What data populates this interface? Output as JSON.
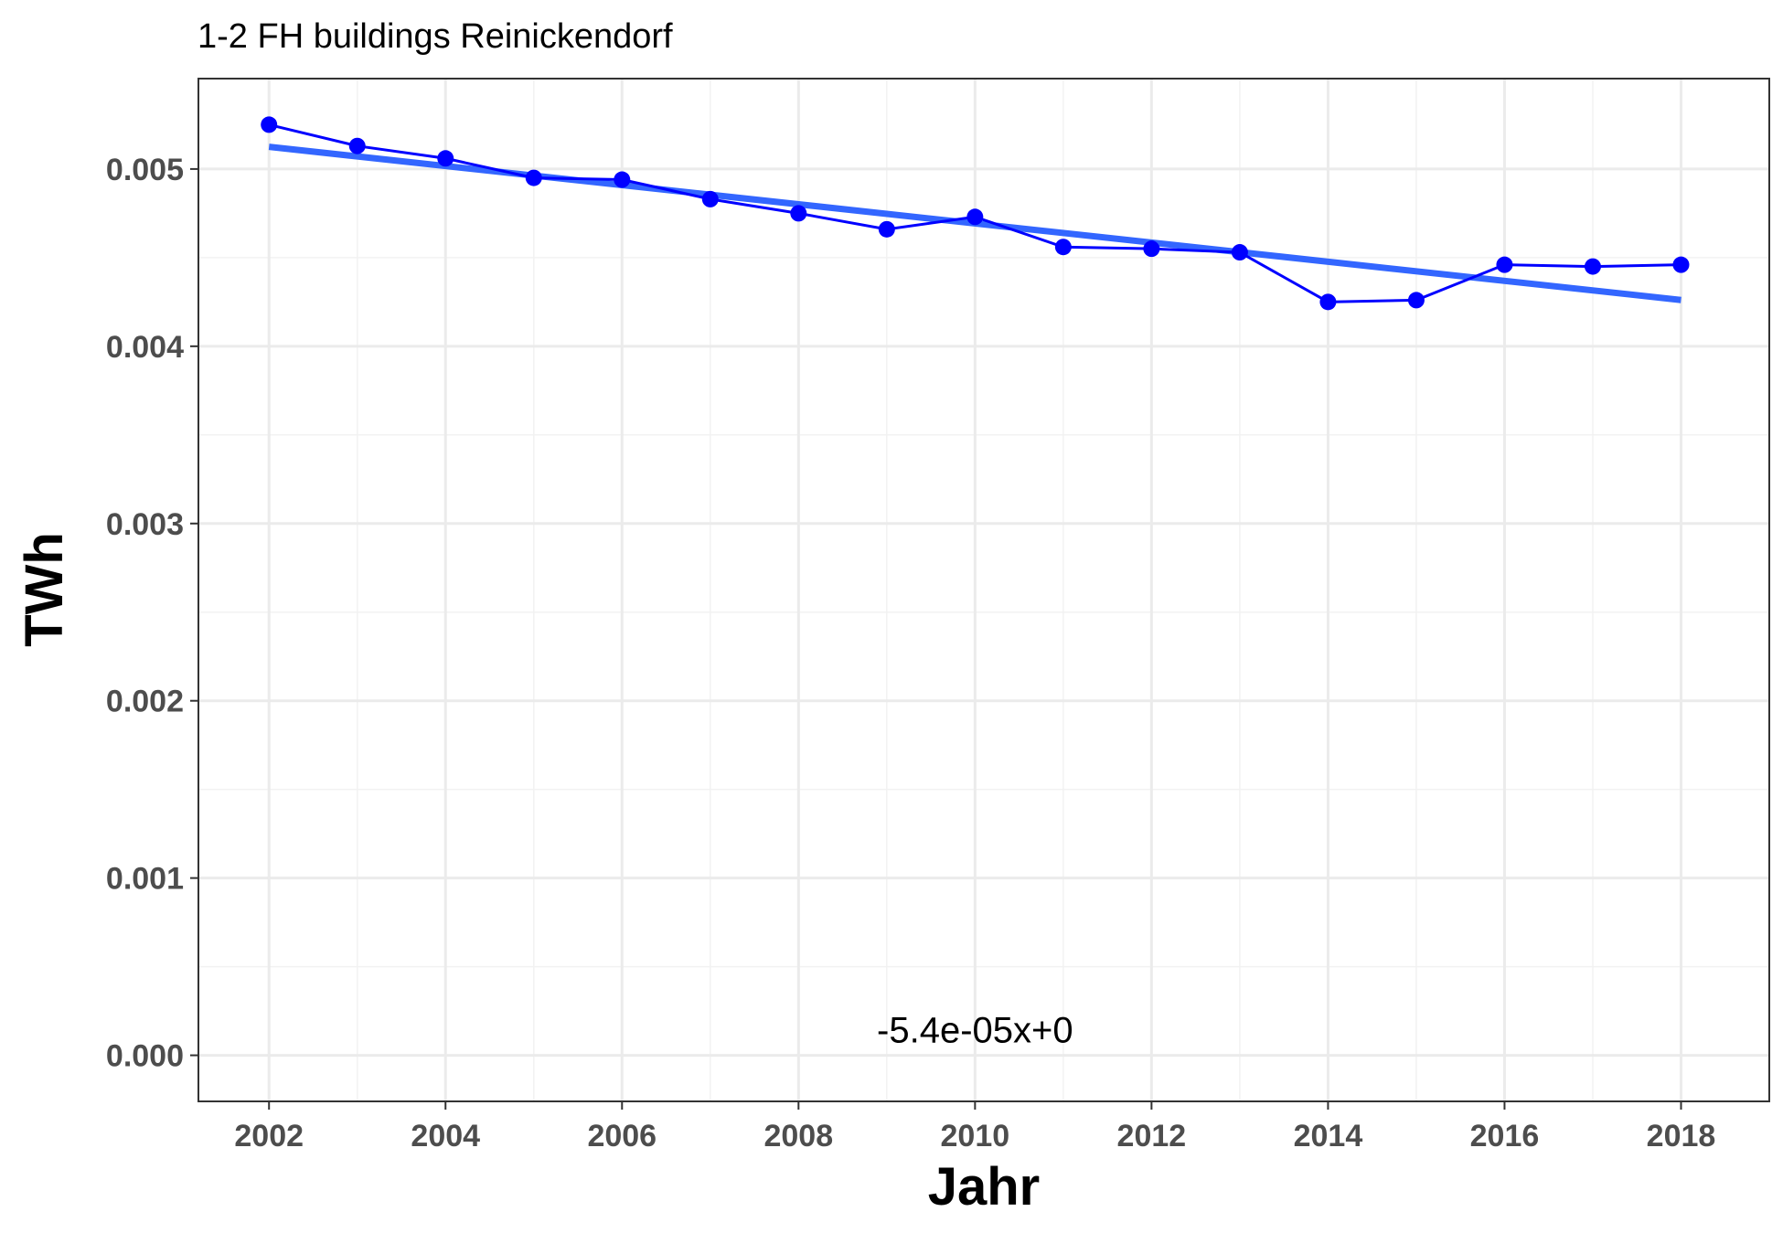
{
  "chart_data": {
    "type": "line",
    "title": "1-2 FH buildings Reinickendorf",
    "xlabel": "Jahr",
    "ylabel": "TWh",
    "annotation": "-5.4e-05x+0",
    "xlim": [
      2001.2,
      2019.0
    ],
    "ylim": [
      -0.00026,
      0.00551
    ],
    "x_ticks": [
      2002,
      2004,
      2006,
      2008,
      2010,
      2012,
      2014,
      2016,
      2018
    ],
    "x_tick_labels": [
      "2002",
      "2004",
      "2006",
      "2008",
      "2010",
      "2012",
      "2014",
      "2016",
      "2018"
    ],
    "y_ticks": [
      0.0,
      0.001,
      0.002,
      0.003,
      0.004,
      0.005
    ],
    "y_tick_labels": [
      "0.000",
      "0.001",
      "0.002",
      "0.003",
      "0.004",
      "0.005"
    ],
    "grid": true,
    "series": [
      {
        "x": [
          2002,
          2003,
          2004,
          2005,
          2006,
          2007,
          2008,
          2009,
          2010,
          2011,
          2012,
          2013,
          2014,
          2015,
          2016,
          2017,
          2018
        ],
        "values": [
          0.00525,
          0.00513,
          0.00506,
          0.00495,
          0.00494,
          0.00483,
          0.00475,
          0.00466,
          0.00473,
          0.00456,
          0.00455,
          0.00453,
          0.00425,
          0.00426,
          0.00446,
          0.00445,
          0.00446
        ],
        "color": "#0000ff"
      }
    ],
    "trend_line": {
      "x": [
        2002,
        2018
      ],
      "values": [
        0.005125,
        0.004261
      ],
      "color": "#3366ff"
    }
  }
}
